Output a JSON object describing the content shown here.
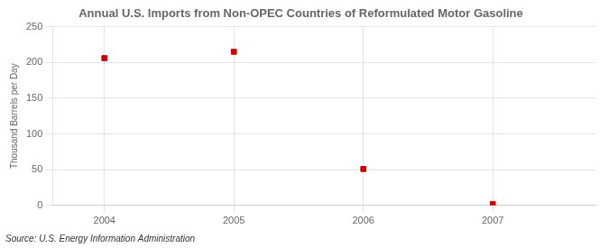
{
  "chart_data": {
    "type": "scatter",
    "title": "Annual U.S. Imports from Non-OPEC Countries of Reformulated Motor Gasoline",
    "ylabel": "Thousand Barrels per Day",
    "source": "Source: U.S. Energy Information Administration",
    "x": [
      2004,
      2005,
      2006,
      2007
    ],
    "values": [
      206,
      215,
      51,
      2
    ],
    "xlim": [
      2003.6,
      2007.8
    ],
    "ylim": [
      0,
      250
    ],
    "xticks": [
      2004,
      2005,
      2006,
      2007
    ],
    "yticks": [
      0,
      50,
      100,
      150,
      200,
      250
    ],
    "color": "#cc0000",
    "marker": "square",
    "grid": true
  }
}
